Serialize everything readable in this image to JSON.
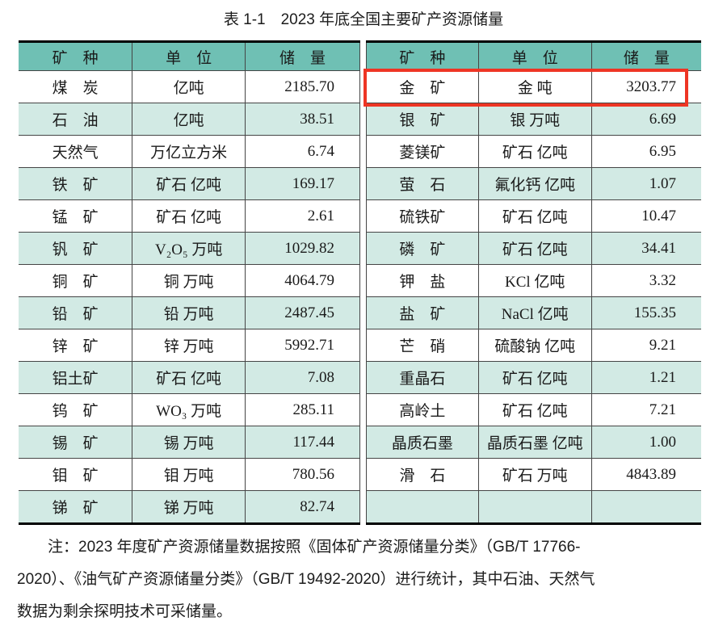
{
  "page": {
    "title": "表 1-1　2023 年底全国主要矿产资源储量"
  },
  "colors": {
    "header_bg": "#6fc0b4",
    "row_alt_bg": "#d2eae4",
    "border_thick": "#000000",
    "border_thin": "#454545",
    "highlight_red": "#ee3524"
  },
  "table": {
    "columns": [
      "矿　种",
      "单　位",
      "储　量"
    ],
    "left_rows": [
      {
        "mineral": "煤　炭",
        "unit": "亿吨",
        "value": "2185.70"
      },
      {
        "mineral": "石　油",
        "unit": "亿吨",
        "value": "38.51"
      },
      {
        "mineral": "天然气",
        "unit": "万亿立方米",
        "value": "6.74"
      },
      {
        "mineral": "铁　矿",
        "unit": "矿石 亿吨",
        "value": "169.17"
      },
      {
        "mineral": "锰　矿",
        "unit": "矿石 亿吨",
        "value": "2.61"
      },
      {
        "mineral": "钒　矿",
        "unit": "V₂O₅ 万吨",
        "value": "1029.82"
      },
      {
        "mineral": "铜　矿",
        "unit": "铜 万吨",
        "value": "4064.79"
      },
      {
        "mineral": "铅　矿",
        "unit": "铅 万吨",
        "value": "2487.45"
      },
      {
        "mineral": "锌　矿",
        "unit": "锌 万吨",
        "value": "5992.71"
      },
      {
        "mineral": "铝土矿",
        "unit": "矿石 亿吨",
        "value": "7.08"
      },
      {
        "mineral": "钨　矿",
        "unit": "WO₃ 万吨",
        "value": "285.11"
      },
      {
        "mineral": "锡　矿",
        "unit": "锡 万吨",
        "value": "117.44"
      },
      {
        "mineral": "钼　矿",
        "unit": "钼 万吨",
        "value": "780.56"
      },
      {
        "mineral": "锑　矿",
        "unit": "锑 万吨",
        "value": "82.74"
      }
    ],
    "right_rows": [
      {
        "mineral": "金　矿",
        "unit": "金 吨",
        "value": "3203.77",
        "highlighted": true
      },
      {
        "mineral": "银　矿",
        "unit": "银 万吨",
        "value": "6.69"
      },
      {
        "mineral": "菱镁矿",
        "unit": "矿石 亿吨",
        "value": "6.95"
      },
      {
        "mineral": "萤　石",
        "unit": "氟化钙 亿吨",
        "value": "1.07"
      },
      {
        "mineral": "硫铁矿",
        "unit": "矿石 亿吨",
        "value": "10.47"
      },
      {
        "mineral": "磷　矿",
        "unit": "矿石 亿吨",
        "value": "34.41"
      },
      {
        "mineral": "钾　盐",
        "unit": "KCl 亿吨",
        "value": "3.32"
      },
      {
        "mineral": "盐　矿",
        "unit": "NaCl 亿吨",
        "value": "155.35"
      },
      {
        "mineral": "芒　硝",
        "unit": "硫酸钠 亿吨",
        "value": "9.21"
      },
      {
        "mineral": "重晶石",
        "unit": "矿石 亿吨",
        "value": "1.21"
      },
      {
        "mineral": "高岭土",
        "unit": "矿石 亿吨",
        "value": "7.21"
      },
      {
        "mineral": "晶质石墨",
        "unit": "晶质石墨 亿吨",
        "value": "1.00"
      },
      {
        "mineral": "滑　石",
        "unit": "矿石 万吨",
        "value": "4843.89"
      },
      {
        "mineral": "",
        "unit": "",
        "value": ""
      }
    ]
  },
  "note": {
    "lines": [
      "注：2023 年度矿产资源储量数据按照《固体矿产资源储量分类》（GB/T 17766-",
      "2020）、《油气矿产资源储量分类》（GB/T 19492-2020）进行统计，其中石油、天然气",
      "数据为剩余探明技术可采储量。"
    ]
  }
}
